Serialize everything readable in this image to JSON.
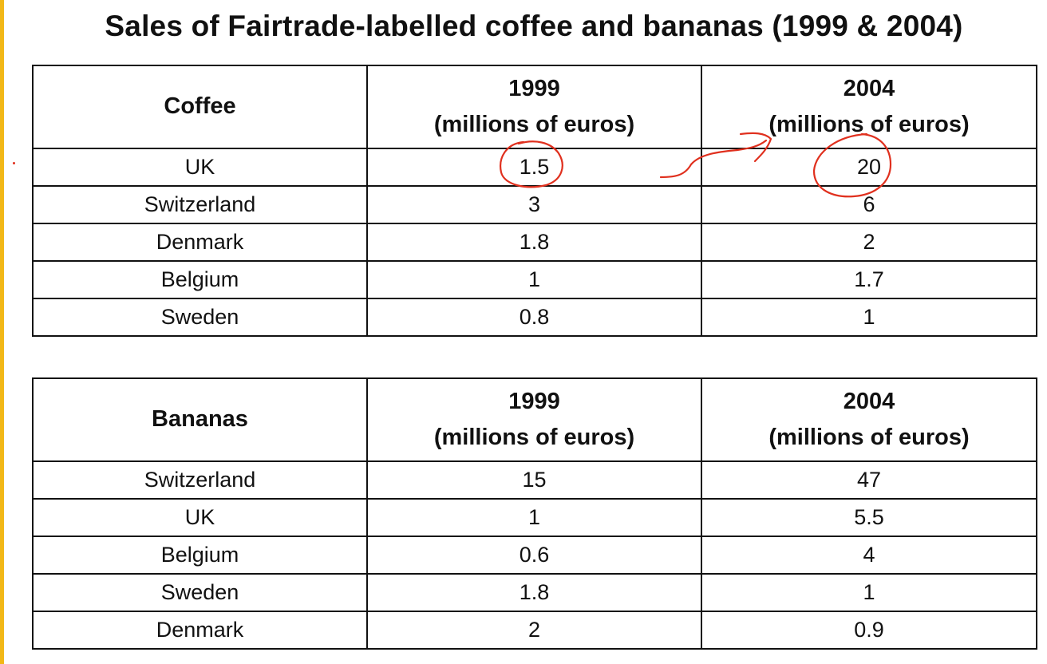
{
  "title": "Sales of Fairtrade-labelled coffee and bananas (1999 & 2004)",
  "colors": {
    "annotation": "#e0301e",
    "frame": "#f2b817"
  },
  "chart_data": [
    {
      "type": "table",
      "label": "Coffee",
      "columns": [
        {
          "year": "1999",
          "unit": "(millions of euros)"
        },
        {
          "year": "2004",
          "unit": "(millions of euros)"
        }
      ],
      "rows": [
        {
          "country": "UK",
          "v1999": "1.5",
          "v2004": "20"
        },
        {
          "country": "Switzerland",
          "v1999": "3",
          "v2004": "6"
        },
        {
          "country": "Denmark",
          "v1999": "1.8",
          "v2004": "2"
        },
        {
          "country": "Belgium",
          "v1999": "1",
          "v2004": "1.7"
        },
        {
          "country": "Sweden",
          "v1999": "0.8",
          "v2004": "1"
        }
      ]
    },
    {
      "type": "table",
      "label": "Bananas",
      "columns": [
        {
          "year": "1999",
          "unit": "(millions of euros)"
        },
        {
          "year": "2004",
          "unit": "(millions of euros)"
        }
      ],
      "rows": [
        {
          "country": "Switzerland",
          "v1999": "15",
          "v2004": "47"
        },
        {
          "country": "UK",
          "v1999": "1",
          "v2004": "5.5"
        },
        {
          "country": "Belgium",
          "v1999": "0.6",
          "v2004": "4"
        },
        {
          "country": "Sweden",
          "v1999": "1.8",
          "v2004": "1"
        },
        {
          "country": "Denmark",
          "v1999": "2",
          "v2004": "0.9"
        }
      ]
    }
  ]
}
